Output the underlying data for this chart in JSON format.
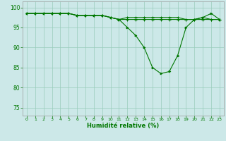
{
  "title": "",
  "xlabel": "Humidité relative (%)",
  "ylabel": "",
  "background_color": "#cce8e8",
  "grid_color": "#99ccbb",
  "line_color": "#007700",
  "marker_color": "#007700",
  "xlim": [
    -0.5,
    23.5
  ],
  "ylim": [
    73,
    101.5
  ],
  "yticks": [
    75,
    80,
    85,
    90,
    95,
    100
  ],
  "xticks": [
    0,
    1,
    2,
    3,
    4,
    5,
    6,
    7,
    8,
    9,
    10,
    11,
    12,
    13,
    14,
    15,
    16,
    17,
    18,
    19,
    20,
    21,
    22,
    23
  ],
  "series": {
    "line1": [
      98.5,
      98.5,
      98.5,
      98.5,
      98.5,
      98.5,
      98.0,
      98.0,
      98.0,
      98.0,
      97.5,
      97.0,
      97.5,
      97.5,
      97.5,
      97.5,
      97.5,
      97.5,
      97.5,
      97.0,
      97.0,
      97.5,
      97.0,
      97.0
    ],
    "line2": [
      98.5,
      98.5,
      98.5,
      98.5,
      98.5,
      98.5,
      98.0,
      98.0,
      98.0,
      98.0,
      97.5,
      97.0,
      95.0,
      93.0,
      90.0,
      85.0,
      83.5,
      84.0,
      88.0,
      95.0,
      97.0,
      97.5,
      98.5,
      97.0
    ],
    "line3": [
      98.5,
      98.5,
      98.5,
      98.5,
      98.5,
      98.5,
      98.0,
      98.0,
      98.0,
      98.0,
      97.5,
      97.0,
      97.0,
      97.0,
      97.0,
      97.0,
      97.0,
      97.0,
      97.0,
      97.0,
      97.0,
      97.0,
      97.0,
      97.0
    ]
  }
}
